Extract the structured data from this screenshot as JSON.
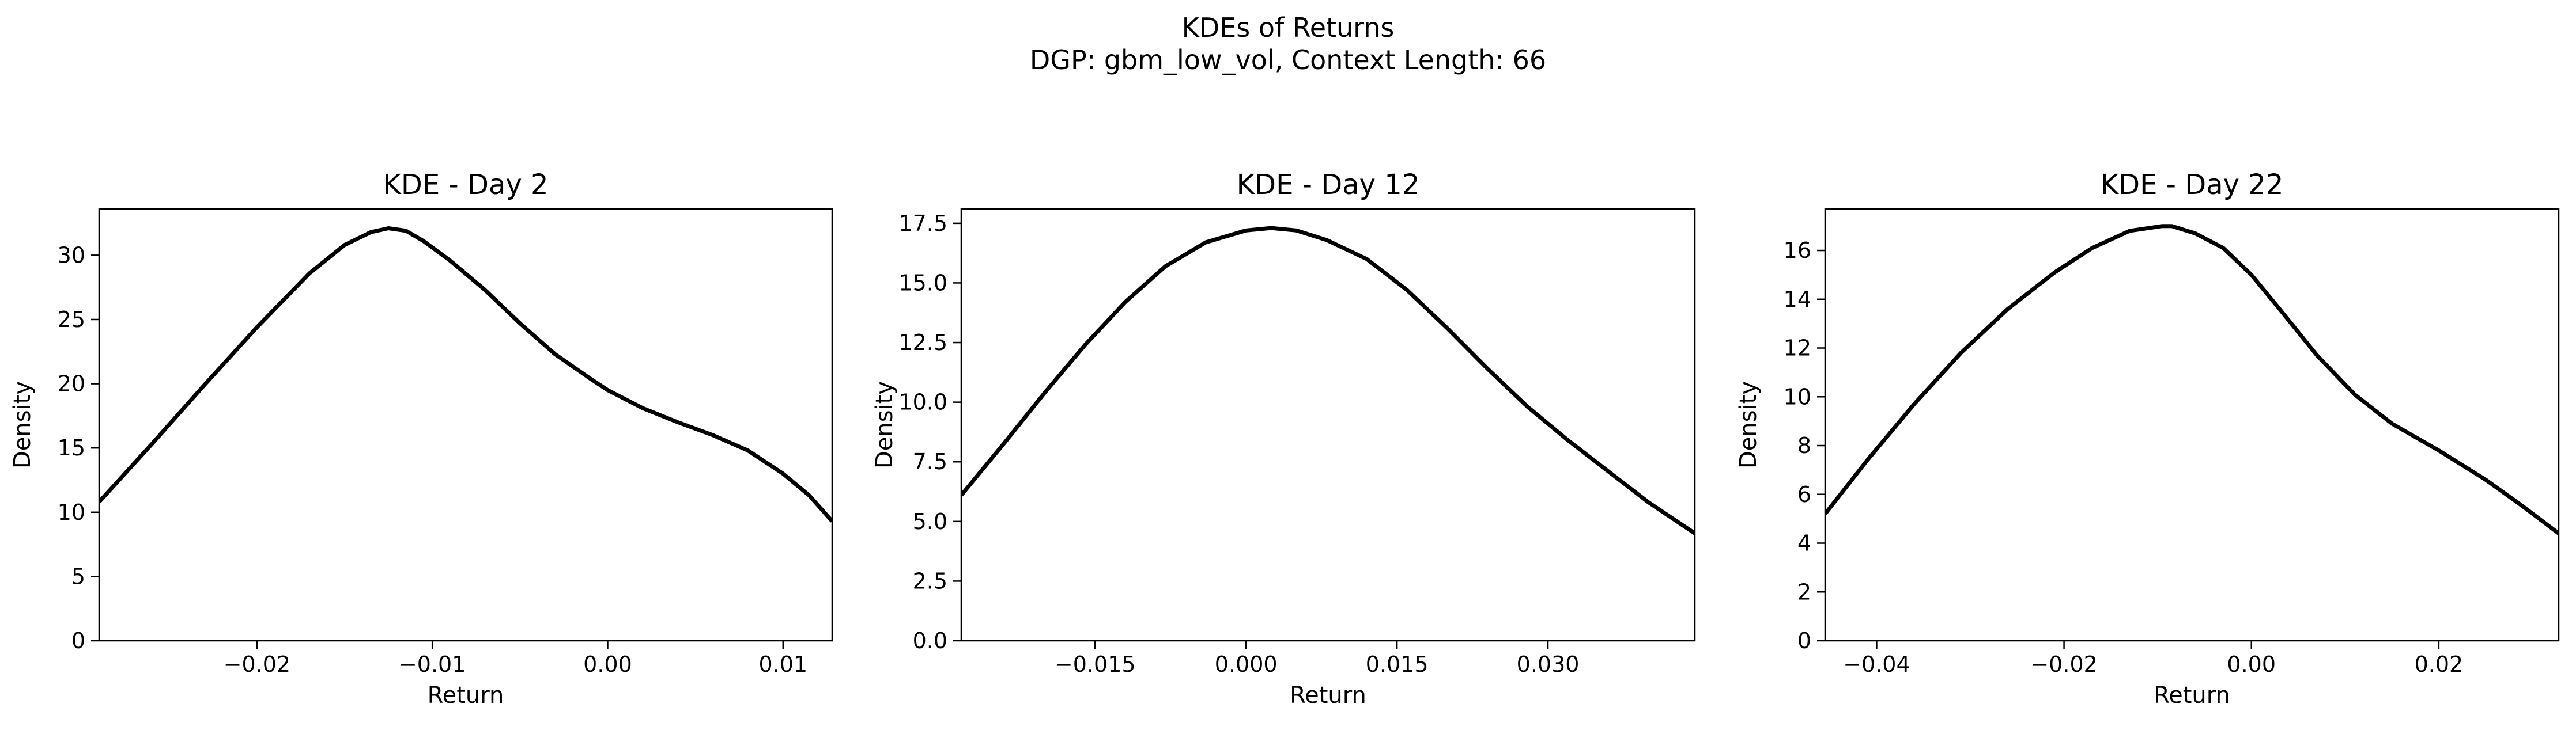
{
  "figure": {
    "title_line1": "KDEs of Returns",
    "title_line2": "DGP: gbm_low_vol, Context Length: 66"
  },
  "chart_data": [
    {
      "type": "line",
      "title": "KDE - Day 2",
      "xlabel": "Return",
      "ylabel": "Density",
      "xlim": [
        -0.029,
        0.0128
      ],
      "ylim": [
        0,
        33.6
      ],
      "xticks": [
        -0.02,
        -0.01,
        0.0,
        0.01
      ],
      "xtick_labels": [
        "−0.02",
        "−0.01",
        "0.00",
        "0.01"
      ],
      "yticks": [
        0,
        5,
        10,
        15,
        20,
        25,
        30
      ],
      "ytick_labels": [
        "0",
        "5",
        "10",
        "15",
        "20",
        "25",
        "30"
      ],
      "grid": false,
      "series": [
        {
          "color": "#000000",
          "x": [
            -0.029,
            -0.026,
            -0.023,
            -0.02,
            -0.017,
            -0.015,
            -0.0135,
            -0.0125,
            -0.0115,
            -0.0105,
            -0.009,
            -0.007,
            -0.005,
            -0.003,
            -0.001,
            0.0,
            0.002,
            0.004,
            0.006,
            0.008,
            0.01,
            0.0115,
            0.0128
          ],
          "y": [
            10.8,
            15.3,
            19.9,
            24.4,
            28.6,
            30.8,
            31.8,
            32.1,
            31.9,
            31.1,
            29.6,
            27.3,
            24.7,
            22.3,
            20.4,
            19.5,
            18.1,
            17.0,
            16.0,
            14.8,
            13.0,
            11.3,
            9.3
          ]
        }
      ]
    },
    {
      "type": "line",
      "title": "KDE - Day 12",
      "xlabel": "Return",
      "ylabel": "Density",
      "xlim": [
        -0.0283,
        0.0446
      ],
      "ylim": [
        0,
        18.1
      ],
      "xticks": [
        -0.015,
        0.0,
        0.015,
        0.03
      ],
      "xtick_labels": [
        "−0.015",
        "0.000",
        "0.015",
        "0.030"
      ],
      "yticks": [
        0,
        2.5,
        5,
        7.5,
        10,
        12.5,
        15,
        17.5
      ],
      "ytick_labels": [
        "0.0",
        "2.5",
        "5.0",
        "7.5",
        "10.0",
        "12.5",
        "15.0",
        "17.5"
      ],
      "grid": false,
      "series": [
        {
          "color": "#000000",
          "x": [
            -0.0283,
            -0.024,
            -0.02,
            -0.016,
            -0.012,
            -0.008,
            -0.004,
            0.0,
            0.0025,
            0.005,
            0.008,
            0.012,
            0.016,
            0.02,
            0.024,
            0.028,
            0.032,
            0.036,
            0.04,
            0.0446
          ],
          "y": [
            6.1,
            8.3,
            10.4,
            12.4,
            14.2,
            15.7,
            16.7,
            17.2,
            17.3,
            17.2,
            16.8,
            16.0,
            14.7,
            13.1,
            11.4,
            9.8,
            8.4,
            7.1,
            5.8,
            4.5
          ]
        }
      ]
    },
    {
      "type": "line",
      "title": "KDE - Day 22",
      "xlabel": "Return",
      "ylabel": "Density",
      "xlim": [
        -0.0455,
        0.0328
      ],
      "ylim": [
        0,
        17.7
      ],
      "xticks": [
        -0.04,
        -0.02,
        0.0,
        0.02
      ],
      "xtick_labels": [
        "−0.04",
        "−0.02",
        "0.00",
        "0.02"
      ],
      "yticks": [
        0,
        2,
        4,
        6,
        8,
        10,
        12,
        14,
        16
      ],
      "ytick_labels": [
        "0",
        "2",
        "4",
        "6",
        "8",
        "10",
        "12",
        "14",
        "16"
      ],
      "grid": false,
      "series": [
        {
          "color": "#000000",
          "x": [
            -0.0455,
            -0.041,
            -0.036,
            -0.031,
            -0.026,
            -0.021,
            -0.017,
            -0.013,
            -0.0095,
            -0.0085,
            -0.006,
            -0.003,
            0.0,
            0.003,
            0.007,
            0.011,
            0.015,
            0.02,
            0.025,
            0.029,
            0.0328
          ],
          "y": [
            5.2,
            7.4,
            9.7,
            11.8,
            13.6,
            15.1,
            16.1,
            16.8,
            17.0,
            17.0,
            16.7,
            16.1,
            15.0,
            13.6,
            11.7,
            10.1,
            8.9,
            7.8,
            6.6,
            5.5,
            4.4
          ]
        }
      ]
    }
  ]
}
